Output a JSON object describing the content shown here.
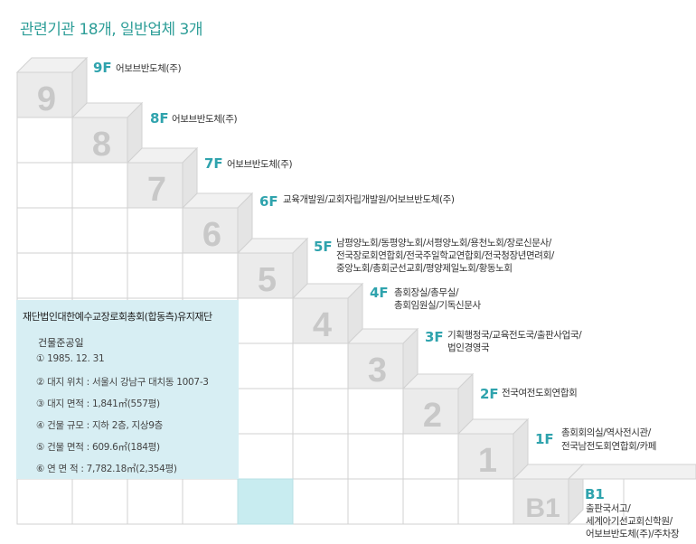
{
  "title": "관련기관 18개, 일반업체 3개",
  "floors": [
    {
      "big": "9",
      "label": "9F",
      "tenants": [
        "어보브반도체(주)"
      ]
    },
    {
      "big": "8",
      "label": "8F",
      "tenants": [
        "어보브반도체(주)"
      ]
    },
    {
      "big": "7",
      "label": "7F",
      "tenants": [
        "어보브반도체(주)"
      ]
    },
    {
      "big": "6",
      "label": "6F",
      "tenants": [
        "교육개발원/교회자립개발원/어보브반도체(주)"
      ]
    },
    {
      "big": "5",
      "label": "5F",
      "tenants": [
        "남평양노회/동평양노회/서평양노회/용천노회/장로신문사/",
        "전국장로회연합회/전국주일학교연합회/전국청장년면려회/",
        "중앙노회/총회군선교회/평양제일노회/황동노회"
      ]
    },
    {
      "big": "4",
      "label": "4F",
      "tenants": [
        "총회장실/총무실/",
        "총회임원실/기독신문사"
      ]
    },
    {
      "big": "3",
      "label": "3F",
      "tenants": [
        "기획행정국/교육전도국/출판사업국/",
        "법인경영국"
      ]
    },
    {
      "big": "2",
      "label": "2F",
      "tenants": [
        "전국여전도회연합회"
      ]
    },
    {
      "big": "1",
      "label": "1F",
      "tenants": [
        "총회회의실/역사전시관/",
        "전국남전도회연합회/카페"
      ]
    },
    {
      "big": "B1",
      "label": "B1",
      "tenants": [
        "출판국서고/",
        "세계아기선교회신학원/",
        "어보브반도체(주)/주차장"
      ]
    }
  ],
  "info": {
    "heading": "재단법인대한예수교장로회총회(합동측)유지재단",
    "subheading": "건물준공일",
    "rows": [
      "① 1985. 12. 31",
      "② 대지 위치 : 서울시 강남구 대치동 1007-3",
      "③ 대지 면적 : 1,841㎡(557평)",
      "④ 건물 규모 : 지하 2층, 지상9층",
      "⑤ 건물 면적 : 609.6㎡(184평)",
      "⑥ 연 면 적 : 7,782.18㎡(2,354평)"
    ]
  },
  "colors": {
    "accent": "#2fa3ad",
    "title": "#2e9e98",
    "info_bg": "#d7eef3",
    "highlight": "#c8ecf0"
  }
}
